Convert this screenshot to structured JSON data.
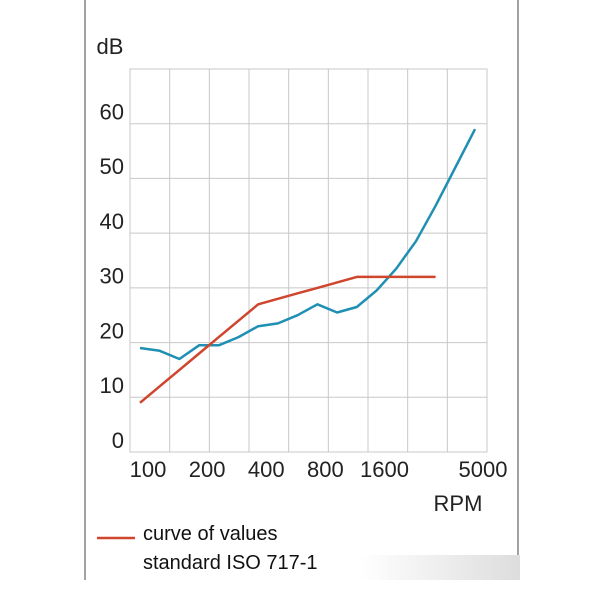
{
  "chart_data": {
    "type": "line",
    "y_label": "dB",
    "x_label": "RPM",
    "categories": [
      "100",
      null,
      null,
      "200",
      null,
      null,
      "400",
      null,
      null,
      "800",
      null,
      null,
      "1600",
      null,
      null,
      null,
      null,
      "5000"
    ],
    "series": [
      {
        "color": "#1f8fb3",
        "values": [
          19,
          18.5,
          17,
          19.5,
          19.5,
          21,
          23,
          23.5,
          25,
          27,
          25.5,
          26.5,
          29.5,
          33.5,
          38.5,
          45,
          52,
          59
        ]
      },
      {
        "name": "curve of values standard ISO 717-1",
        "color": "#cf452d",
        "values": [
          9,
          12,
          15,
          18,
          21,
          24,
          27,
          28,
          29,
          30,
          31,
          32,
          32,
          32,
          32,
          32,
          null,
          null
        ]
      }
    ],
    "ylim": [
      0,
      70
    ],
    "yticks": [
      0,
      10,
      20,
      30,
      40,
      50,
      60
    ],
    "grid": true
  }
}
